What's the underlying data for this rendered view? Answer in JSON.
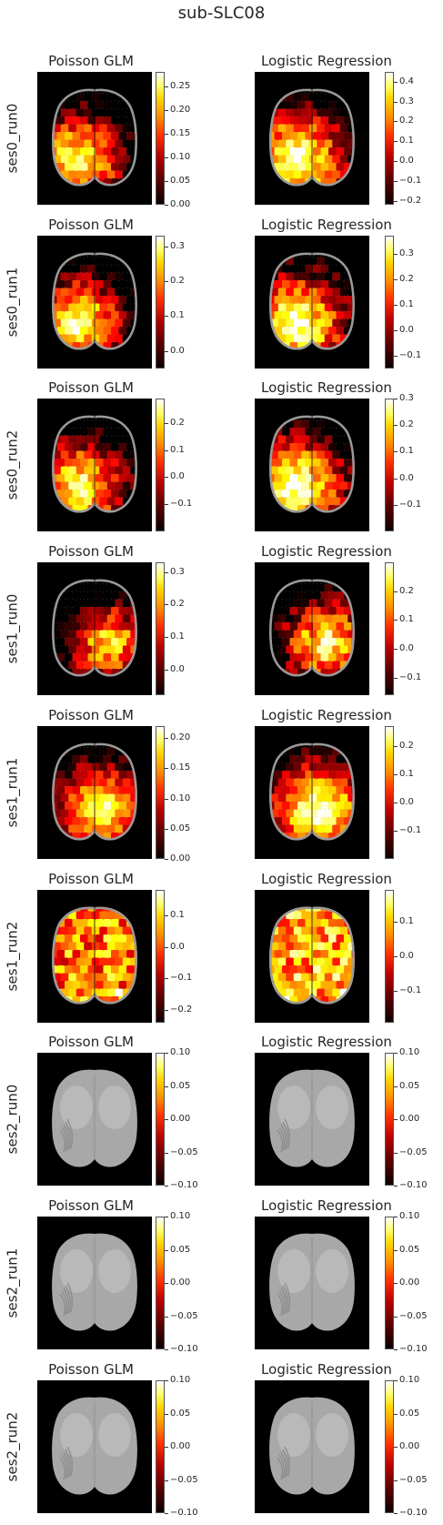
{
  "figure": {
    "suptitle": "sub-SLC08",
    "col_titles": [
      "Poisson GLM",
      "Logistic Regression"
    ]
  },
  "chart_data": {
    "type": "heatmap",
    "title": "sub-SLC08",
    "colormap": "hot",
    "brain_fill_color": "#9e9e9e",
    "panel_background": "#000000",
    "rows": [
      {
        "label": "ses0_run0",
        "panels": [
          {
            "title": "Poisson GLM",
            "ticks": [
              "0.25",
              "0.20",
              "0.15",
              "0.10",
              "0.05",
              "0.00"
            ],
            "range": [
              0.0,
              0.28
            ],
            "data_present": true
          },
          {
            "title": "Logistic Regression",
            "ticks": [
              "0.4",
              "0.3",
              "0.2",
              "0.1",
              "0.0",
              "−0.1",
              "−0.2"
            ],
            "range": [
              -0.22,
              0.45
            ],
            "data_present": true
          }
        ]
      },
      {
        "label": "ses0_run1",
        "panels": [
          {
            "title": "Poisson GLM",
            "ticks": [
              "0.3",
              "0.2",
              "0.1",
              "0.0"
            ],
            "range": [
              -0.05,
              0.33
            ],
            "data_present": true
          },
          {
            "title": "Logistic Regression",
            "ticks": [
              "0.3",
              "0.2",
              "0.1",
              "0.0",
              "−0.1"
            ],
            "range": [
              -0.15,
              0.37
            ],
            "data_present": true
          }
        ]
      },
      {
        "label": "ses0_run2",
        "panels": [
          {
            "title": "Poisson GLM",
            "ticks": [
              "0.2",
              "0.1",
              "0.0",
              "−0.1"
            ],
            "range": [
              -0.2,
              0.29
            ],
            "data_present": true
          },
          {
            "title": "Logistic Regression",
            "ticks": [
              "0.3",
              "0.2",
              "0.1",
              "0.0",
              "−0.1"
            ],
            "range": [
              -0.2,
              0.3
            ],
            "data_present": true
          }
        ]
      },
      {
        "label": "ses1_run0",
        "panels": [
          {
            "title": "Poisson GLM",
            "ticks": [
              "0.3",
              "0.2",
              "0.1",
              "0.0"
            ],
            "range": [
              -0.08,
              0.33
            ],
            "data_present": true
          },
          {
            "title": "Logistic Regression",
            "ticks": [
              "0.2",
              "0.1",
              "0.0",
              "−0.1"
            ],
            "range": [
              -0.16,
              0.3
            ],
            "data_present": true
          }
        ]
      },
      {
        "label": "ses1_run1",
        "panels": [
          {
            "title": "Poisson GLM",
            "ticks": [
              "0.20",
              "0.15",
              "0.10",
              "0.05",
              "0.00"
            ],
            "range": [
              0.0,
              0.22
            ],
            "data_present": true
          },
          {
            "title": "Logistic Regression",
            "ticks": [
              "0.2",
              "0.1",
              "0.0",
              "−0.1"
            ],
            "range": [
              -0.2,
              0.27
            ],
            "data_present": true
          }
        ]
      },
      {
        "label": "ses1_run2",
        "panels": [
          {
            "title": "Poisson GLM",
            "ticks": [
              "0.1",
              "0.0",
              "−0.1",
              "−0.2"
            ],
            "range": [
              -0.24,
              0.18
            ],
            "data_present": true
          },
          {
            "title": "Logistic Regression",
            "ticks": [
              "0.1",
              "0.0",
              "−0.1"
            ],
            "range": [
              -0.19,
              0.19
            ],
            "data_present": true
          }
        ]
      },
      {
        "label": "ses2_run0",
        "panels": [
          {
            "title": "Poisson GLM",
            "ticks": [
              "0.10",
              "0.05",
              "0.00",
              "−0.05",
              "−0.10"
            ],
            "range": [
              -0.1,
              0.1
            ],
            "data_present": false
          },
          {
            "title": "Logistic Regression",
            "ticks": [
              "0.10",
              "0.05",
              "0.00",
              "−0.05",
              "−0.10"
            ],
            "range": [
              -0.1,
              0.1
            ],
            "data_present": false
          }
        ]
      },
      {
        "label": "ses2_run1",
        "panels": [
          {
            "title": "Poisson GLM",
            "ticks": [
              "0.10",
              "0.05",
              "0.00",
              "−0.05",
              "−0.10"
            ],
            "range": [
              -0.1,
              0.1
            ],
            "data_present": false
          },
          {
            "title": "Logistic Regression",
            "ticks": [
              "0.10",
              "0.05",
              "0.00",
              "−0.05",
              "−0.10"
            ],
            "range": [
              -0.1,
              0.1
            ],
            "data_present": false
          }
        ]
      },
      {
        "label": "ses2_run2",
        "panels": [
          {
            "title": "Poisson GLM",
            "ticks": [
              "0.10",
              "0.05",
              "0.00",
              "−0.05",
              "−0.10"
            ],
            "range": [
              -0.1,
              0.1
            ],
            "data_present": false
          },
          {
            "title": "Logistic Regression",
            "ticks": [
              "0.10",
              "0.05",
              "0.00",
              "−0.05",
              "−0.10"
            ],
            "range": [
              -0.1,
              0.1
            ],
            "data_present": false
          }
        ]
      }
    ]
  }
}
